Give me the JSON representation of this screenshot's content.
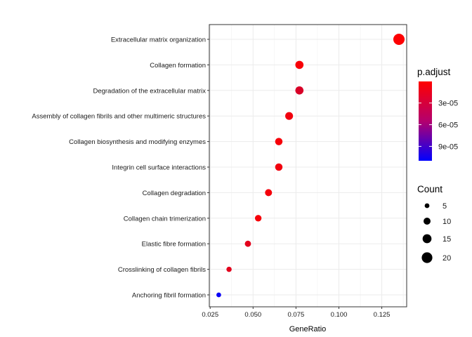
{
  "chart_data": {
    "type": "scatter",
    "xlabel": "GeneRatio",
    "xlim": [
      0.0245,
      0.1395
    ],
    "x_ticks": [
      {
        "value": 0.025,
        "label": "0.025"
      },
      {
        "value": 0.05,
        "label": "0.050"
      },
      {
        "value": 0.075,
        "label": "0.075"
      },
      {
        "value": 0.1,
        "label": "0.100"
      },
      {
        "value": 0.125,
        "label": "0.125"
      }
    ],
    "grid": true,
    "points": [
      {
        "term": "Extracellular matrix organization",
        "gene_ratio": 0.135,
        "count": 22,
        "p_adjust": 1e-06
      },
      {
        "term": "Collagen formation",
        "gene_ratio": 0.077,
        "count": 13,
        "p_adjust": 3e-06
      },
      {
        "term": "Degradation of the extracellular matrix",
        "gene_ratio": 0.077,
        "count": 13,
        "p_adjust": 1.7e-05
      },
      {
        "term": "Assembly of collagen fibrils and other multimeric structures",
        "gene_ratio": 0.071,
        "count": 12,
        "p_adjust": 6e-06
      },
      {
        "term": "Collagen biosynthesis and modifying enzymes",
        "gene_ratio": 0.065,
        "count": 11,
        "p_adjust": 4e-06
      },
      {
        "term": "Integrin cell surface interactions",
        "gene_ratio": 0.065,
        "count": 11,
        "p_adjust": 6e-06
      },
      {
        "term": "Collagen degradation",
        "gene_ratio": 0.059,
        "count": 10,
        "p_adjust": 5e-06
      },
      {
        "term": "Collagen chain trimerization",
        "gene_ratio": 0.053,
        "count": 9,
        "p_adjust": 4e-06
      },
      {
        "term": "Elastic fibre formation",
        "gene_ratio": 0.047,
        "count": 8,
        "p_adjust": 1.2e-05
      },
      {
        "term": "Crosslinking of collagen fibrils",
        "gene_ratio": 0.036,
        "count": 6,
        "p_adjust": 1.2e-05
      },
      {
        "term": "Anchoring fibril formation",
        "gene_ratio": 0.03,
        "count": 5,
        "p_adjust": 0.000106
      }
    ],
    "color_legend": {
      "title": "p.adjust",
      "domain": [
        1e-07,
        0.00011
      ],
      "colors": {
        "low": "#ff0000",
        "high": "#0000ff"
      },
      "ticks": [
        {
          "value": 3e-05,
          "label": "3e-05"
        },
        {
          "value": 6e-05,
          "label": "6e-05"
        },
        {
          "value": 9e-05,
          "label": "9e-05"
        }
      ]
    },
    "size_legend": {
      "title": "Count",
      "items": [
        {
          "value": 5,
          "label": "5"
        },
        {
          "value": 10,
          "label": "10"
        },
        {
          "value": 15,
          "label": "15"
        },
        {
          "value": 20,
          "label": "20"
        }
      ]
    }
  }
}
